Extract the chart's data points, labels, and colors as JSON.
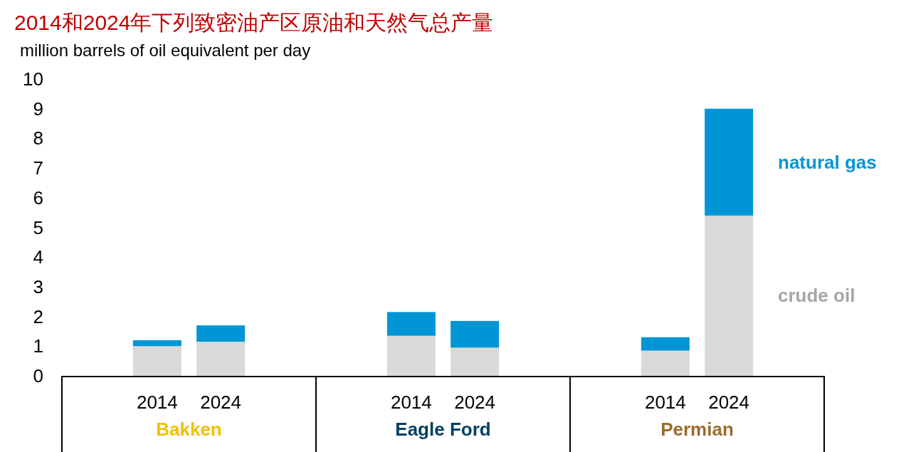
{
  "chart_data": {
    "type": "bar",
    "stacked": true,
    "title": "2014和2024年下列致密油产区原油和天然气总产量",
    "ylabel": "million barrels of oil equivalent per day",
    "categories": [
      "2014",
      "2024",
      null,
      null,
      "2014",
      "2024",
      null,
      null,
      "2014",
      "2024"
    ],
    "series": [
      {
        "name": "crude oil",
        "color": "#d9d9d9",
        "values": [
          1.0,
          1.15,
          null,
          null,
          1.35,
          0.95,
          null,
          null,
          0.85,
          5.4
        ]
      },
      {
        "name": "natural gas",
        "color": "#0096d6",
        "values": [
          0.2,
          0.55,
          null,
          null,
          0.8,
          0.9,
          null,
          null,
          0.45,
          3.6
        ]
      }
    ],
    "annotations": [
      "Bakken",
      "Eagle Ford",
      "Permian"
    ],
    "ylim": [
      0,
      10
    ],
    "yticks": [
      0,
      1,
      2,
      3,
      4,
      5,
      6,
      7,
      8,
      9,
      10
    ],
    "grid": false,
    "legend": "right"
  }
}
